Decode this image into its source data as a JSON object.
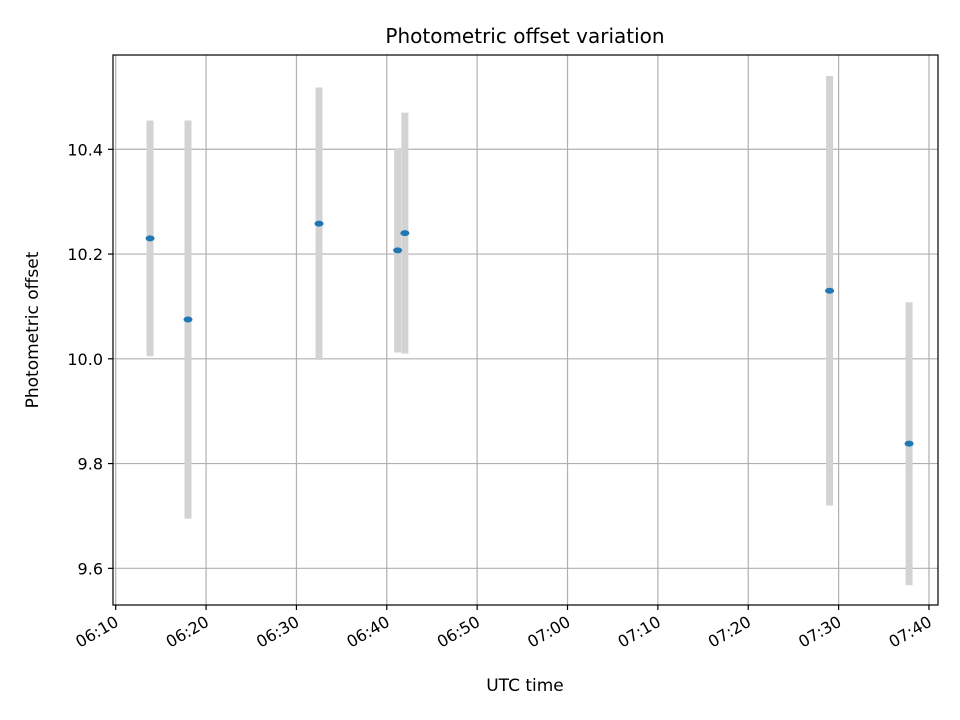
{
  "chart_data": {
    "type": "scatter",
    "title": "Photometric offset variation",
    "xlabel": "UTC time",
    "ylabel": "Photometric offset",
    "x_tick_labels": [
      "06:10",
      "06:20",
      "06:30",
      "06:40",
      "06:50",
      "07:00",
      "07:10",
      "07:20",
      "07:30",
      "07:40"
    ],
    "y_tick_labels": [
      "9.6",
      "9.8",
      "10.0",
      "10.2",
      "10.4"
    ],
    "y_ticks": [
      9.6,
      9.8,
      10.0,
      10.2,
      10.4
    ],
    "xlim": [
      "06:09.7",
      "07:41.0"
    ],
    "ylim": [
      9.53,
      10.58
    ],
    "grid": true,
    "series": [
      {
        "points": [
          {
            "x": "06:13.8",
            "y": 10.23,
            "err": 0.225
          },
          {
            "x": "06:18.0",
            "y": 10.075,
            "err": 0.38
          },
          {
            "x": "06:32.5",
            "y": 10.258,
            "err": 0.26
          },
          {
            "x": "06:41.2",
            "y": 10.207,
            "err": 0.195
          },
          {
            "x": "06:42.0",
            "y": 10.24,
            "err": 0.23
          },
          {
            "x": "07:29.0",
            "y": 10.13,
            "err": 0.41
          },
          {
            "x": "07:37.8",
            "y": 9.838,
            "err": 0.27
          }
        ]
      }
    ]
  },
  "colors": {
    "marker": "#1f77b4",
    "errorbar": "#d3d3d3",
    "grid": "#b0b0b0",
    "axes": "#000000"
  }
}
